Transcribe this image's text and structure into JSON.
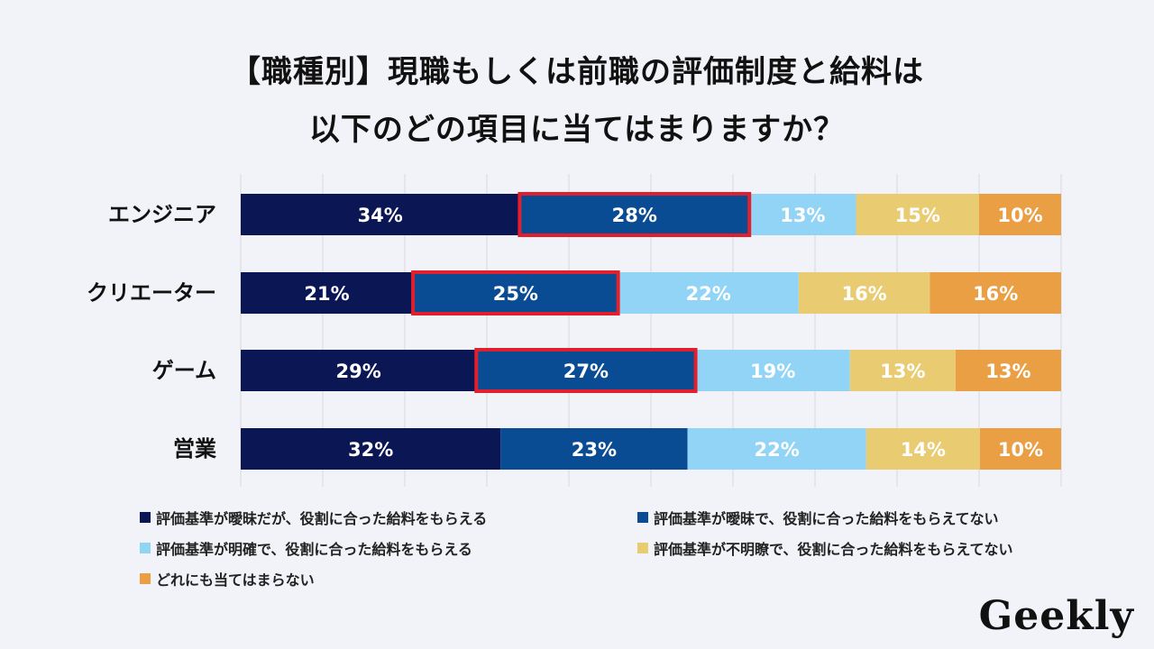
{
  "title_line1": "【職種別】現職もしくは前職の評価制度と給料は",
  "title_line2": "以下のどの項目に当てはまりますか？",
  "logo": "Geekly",
  "chart_data": {
    "type": "bar",
    "orientation": "horizontal",
    "stacked": true,
    "percent": true,
    "categories": [
      "エンジニア",
      "クリエーター",
      "ゲーム",
      "営業"
    ],
    "series": [
      {
        "name": "評価基準が曖昧だが、役割に合った給料をもらえる",
        "color": "#0b1655",
        "values": [
          34,
          21,
          29,
          32
        ],
        "labels": [
          "34%",
          "21%",
          "29%",
          "32%"
        ]
      },
      {
        "name": "評価基準が曖昧で、役割に合った給料をもらえてない",
        "color": "#0a4c94",
        "values": [
          28,
          25,
          27,
          23
        ],
        "labels": [
          "28%",
          "25%",
          "27%",
          "23%"
        ]
      },
      {
        "name": "評価基準が明確で、役割に合った給料をもらえる",
        "color": "#92d4f6",
        "values": [
          13,
          22,
          19,
          22
        ],
        "labels": [
          "13%",
          "22%",
          "19%",
          "22%"
        ]
      },
      {
        "name": "評価基準が不明瞭で、役割に合った給料をもらえてない",
        "color": "#e9cc72",
        "values": [
          15,
          16,
          13,
          14
        ],
        "labels": [
          "15%",
          "16%",
          "13%",
          "14%"
        ]
      },
      {
        "name": "どれにも当てはまらない",
        "color": "#ea9f44",
        "values": [
          10,
          16,
          13,
          10
        ],
        "labels": [
          "10%",
          "16%",
          "13%",
          "10%"
        ]
      }
    ],
    "highlight": {
      "series": 1,
      "categories": [
        0,
        1,
        2
      ],
      "color": "#e0202c"
    },
    "xlim": [
      0,
      100
    ],
    "grid": true,
    "legend_position": "bottom"
  }
}
